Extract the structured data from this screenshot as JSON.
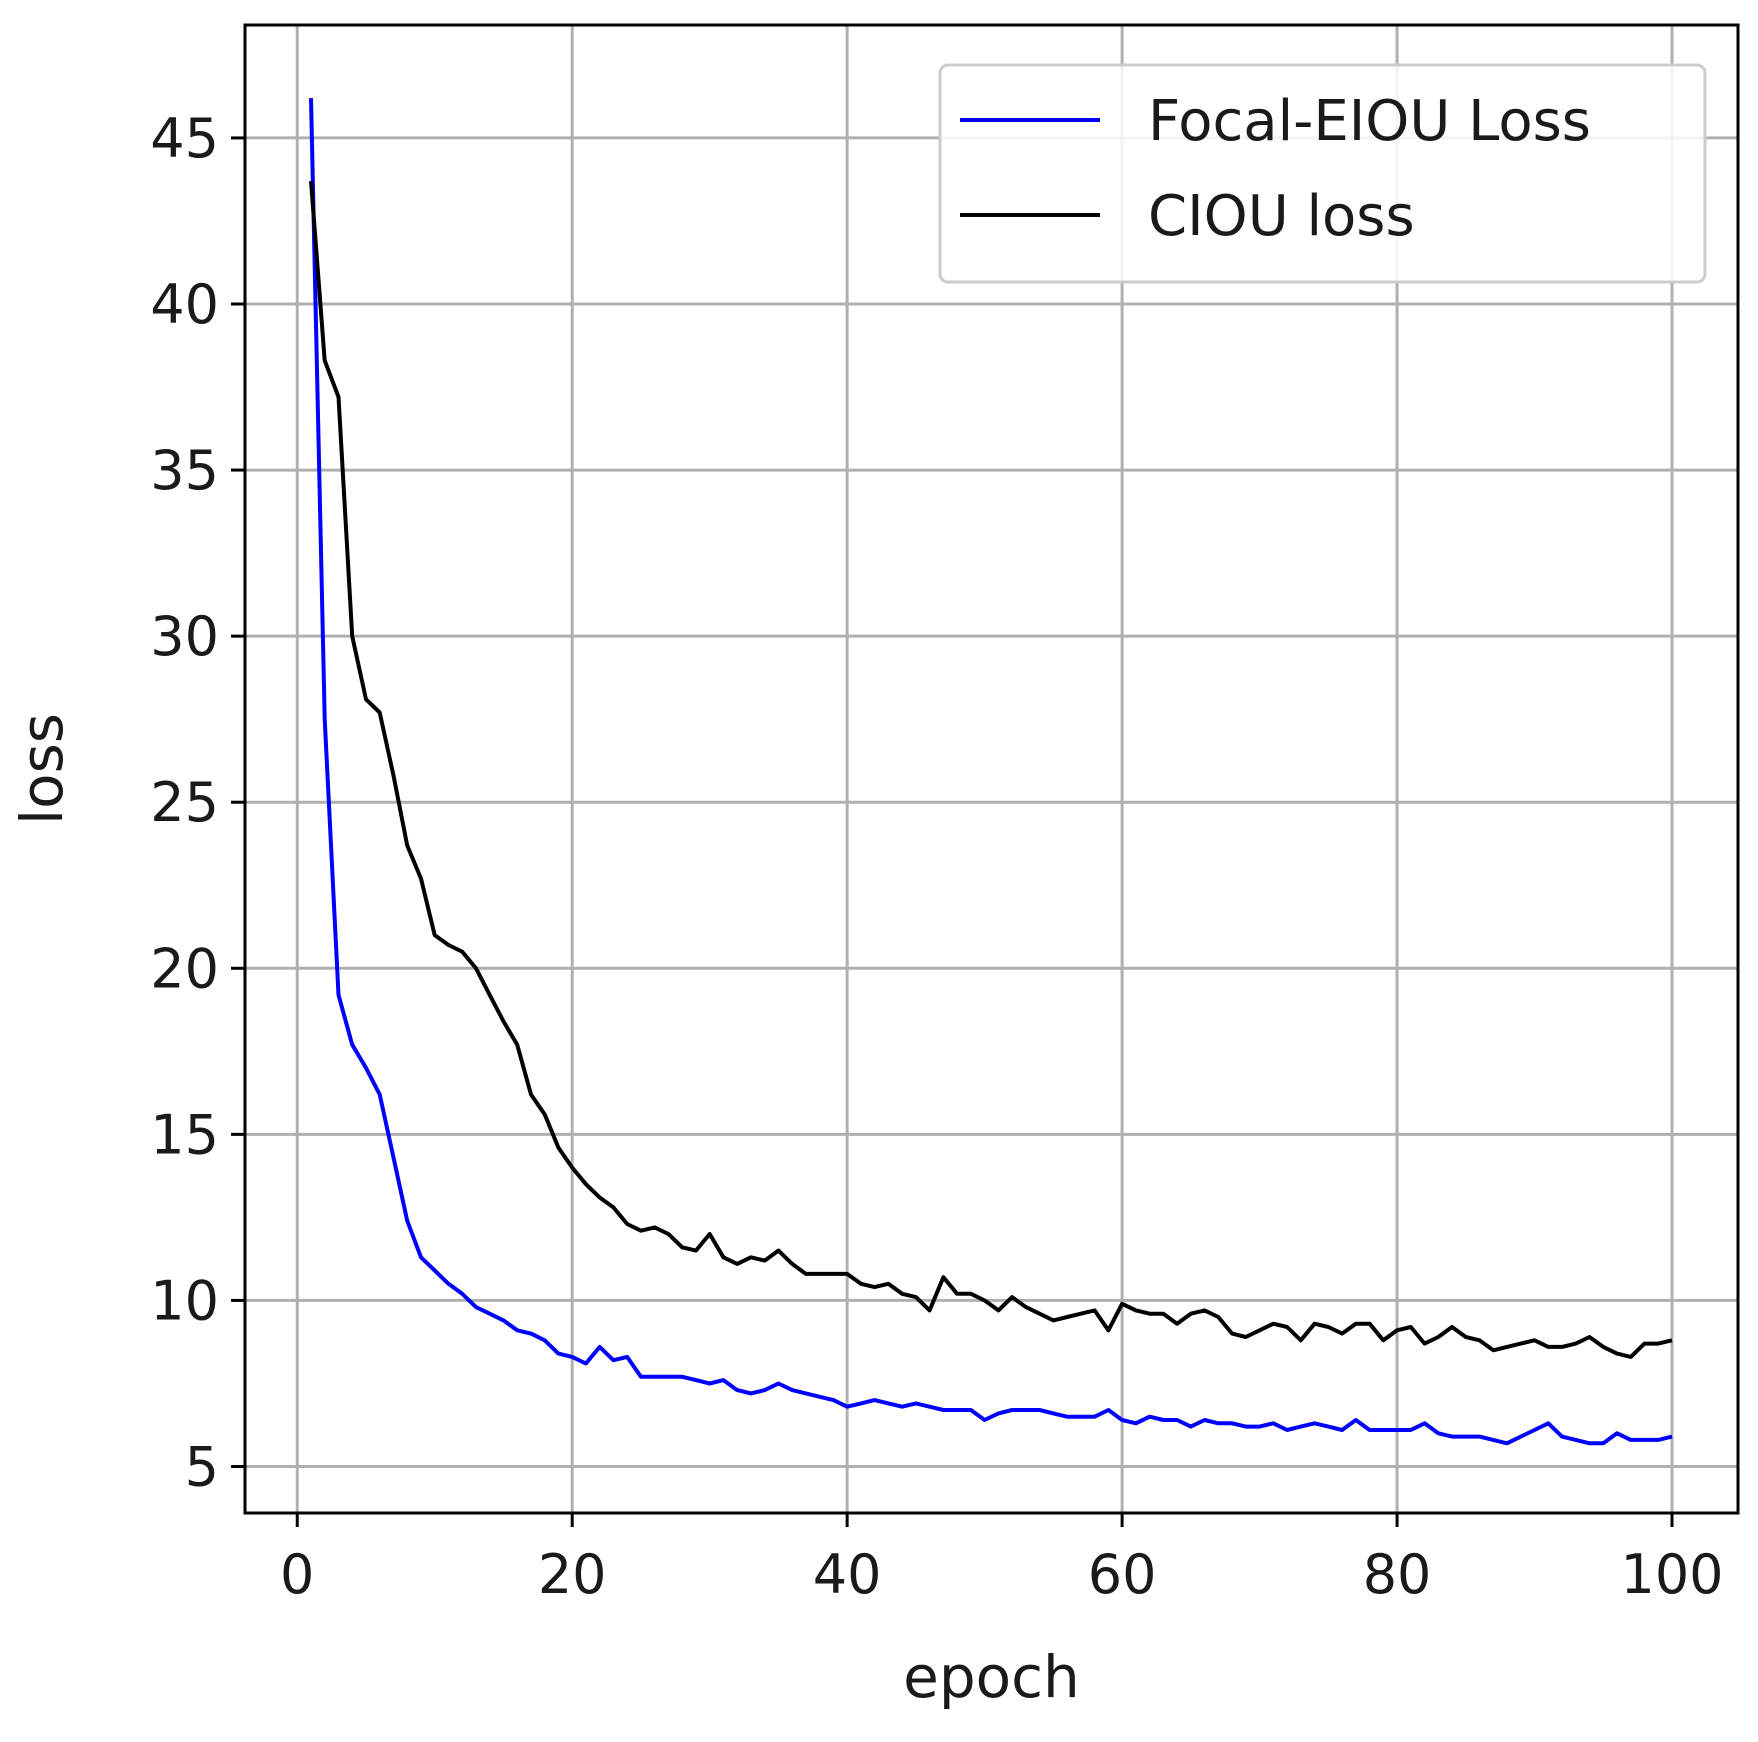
{
  "colors": {
    "focal": "#0000ff",
    "ciou": "#000000",
    "grid": "#b0b0b0"
  },
  "chart_data": {
    "type": "line",
    "title": "",
    "xlabel": "epoch",
    "ylabel": "loss",
    "xlim": [
      -3.8,
      104.8
    ],
    "ylim": [
      3.6,
      48.4
    ],
    "xticks": [
      0,
      20,
      40,
      60,
      80,
      100
    ],
    "yticks": [
      5,
      10,
      15,
      20,
      25,
      30,
      35,
      40,
      45
    ],
    "grid": true,
    "legend_position": "top-right",
    "series": [
      {
        "name": "Focal-EIOU Loss",
        "color": "#0000ff",
        "x": [
          1,
          2,
          3,
          4,
          5,
          6,
          7,
          8,
          9,
          10,
          11,
          12,
          13,
          14,
          15,
          16,
          17,
          18,
          19,
          20,
          21,
          22,
          23,
          24,
          25,
          26,
          27,
          28,
          29,
          30,
          31,
          32,
          33,
          34,
          35,
          36,
          37,
          38,
          39,
          40,
          41,
          42,
          43,
          44,
          45,
          46,
          47,
          48,
          49,
          50,
          51,
          52,
          53,
          54,
          55,
          56,
          57,
          58,
          59,
          60,
          61,
          62,
          63,
          64,
          65,
          66,
          67,
          68,
          69,
          70,
          71,
          72,
          73,
          74,
          75,
          76,
          77,
          78,
          79,
          80,
          81,
          82,
          83,
          84,
          85,
          86,
          87,
          88,
          89,
          90,
          91,
          92,
          93,
          94,
          95,
          96,
          97,
          98,
          99,
          100
        ],
        "y": [
          46.2,
          27.5,
          19.2,
          17.7,
          17.0,
          16.2,
          14.3,
          12.4,
          11.3,
          10.9,
          10.5,
          10.2,
          9.8,
          9.6,
          9.4,
          9.1,
          9.0,
          8.8,
          8.4,
          8.3,
          8.1,
          8.6,
          8.2,
          8.3,
          7.7,
          7.7,
          7.7,
          7.7,
          7.6,
          7.5,
          7.6,
          7.3,
          7.2,
          7.3,
          7.5,
          7.3,
          7.2,
          7.1,
          7.0,
          6.8,
          6.9,
          7.0,
          6.9,
          6.8,
          6.9,
          6.8,
          6.7,
          6.7,
          6.7,
          6.4,
          6.6,
          6.7,
          6.7,
          6.7,
          6.6,
          6.5,
          6.5,
          6.5,
          6.7,
          6.4,
          6.3,
          6.5,
          6.4,
          6.4,
          6.2,
          6.4,
          6.3,
          6.3,
          6.2,
          6.2,
          6.3,
          6.1,
          6.2,
          6.3,
          6.2,
          6.1,
          6.4,
          6.1,
          6.1,
          6.1,
          6.1,
          6.3,
          6.0,
          5.9,
          5.9,
          5.9,
          5.8,
          5.7,
          5.9,
          6.1,
          6.3,
          5.9,
          5.8,
          5.7,
          5.7,
          6.0,
          5.8,
          5.8,
          5.8,
          5.9
        ]
      },
      {
        "name": "CIOU loss",
        "color": "#000000",
        "x": [
          1,
          2,
          3,
          4,
          5,
          6,
          7,
          8,
          9,
          10,
          11,
          12,
          13,
          14,
          15,
          16,
          17,
          18,
          19,
          20,
          21,
          22,
          23,
          24,
          25,
          26,
          27,
          28,
          29,
          30,
          31,
          32,
          33,
          34,
          35,
          36,
          37,
          38,
          39,
          40,
          41,
          42,
          43,
          44,
          45,
          46,
          47,
          48,
          49,
          50,
          51,
          52,
          53,
          54,
          55,
          56,
          57,
          58,
          59,
          60,
          61,
          62,
          63,
          64,
          65,
          66,
          67,
          68,
          69,
          70,
          71,
          72,
          73,
          74,
          75,
          76,
          77,
          78,
          79,
          80,
          81,
          82,
          83,
          84,
          85,
          86,
          87,
          88,
          89,
          90,
          91,
          92,
          93,
          94,
          95,
          96,
          97,
          98,
          99,
          100
        ],
        "y": [
          43.7,
          38.3,
          37.2,
          30.0,
          28.1,
          27.7,
          25.8,
          23.7,
          22.7,
          21.0,
          20.7,
          20.5,
          20.0,
          19.2,
          18.4,
          17.7,
          16.2,
          15.6,
          14.6,
          14.0,
          13.5,
          13.1,
          12.8,
          12.3,
          12.1,
          12.2,
          12.0,
          11.6,
          11.5,
          12.0,
          11.3,
          11.1,
          11.3,
          11.2,
          11.5,
          11.1,
          10.8,
          10.8,
          10.8,
          10.8,
          10.5,
          10.4,
          10.5,
          10.2,
          10.1,
          9.7,
          10.7,
          10.2,
          10.2,
          10.0,
          9.7,
          10.1,
          9.8,
          9.6,
          9.4,
          9.5,
          9.6,
          9.7,
          9.1,
          9.9,
          9.7,
          9.6,
          9.6,
          9.3,
          9.6,
          9.7,
          9.5,
          9.0,
          8.9,
          9.1,
          9.3,
          9.2,
          8.8,
          9.3,
          9.2,
          9.0,
          9.3,
          9.3,
          8.8,
          9.1,
          9.2,
          8.7,
          8.9,
          9.2,
          8.9,
          8.8,
          8.5,
          8.6,
          8.7,
          8.8,
          8.6,
          8.6,
          8.7,
          8.9,
          8.6,
          8.4,
          8.3,
          8.7,
          8.7,
          8.8
        ]
      }
    ]
  }
}
